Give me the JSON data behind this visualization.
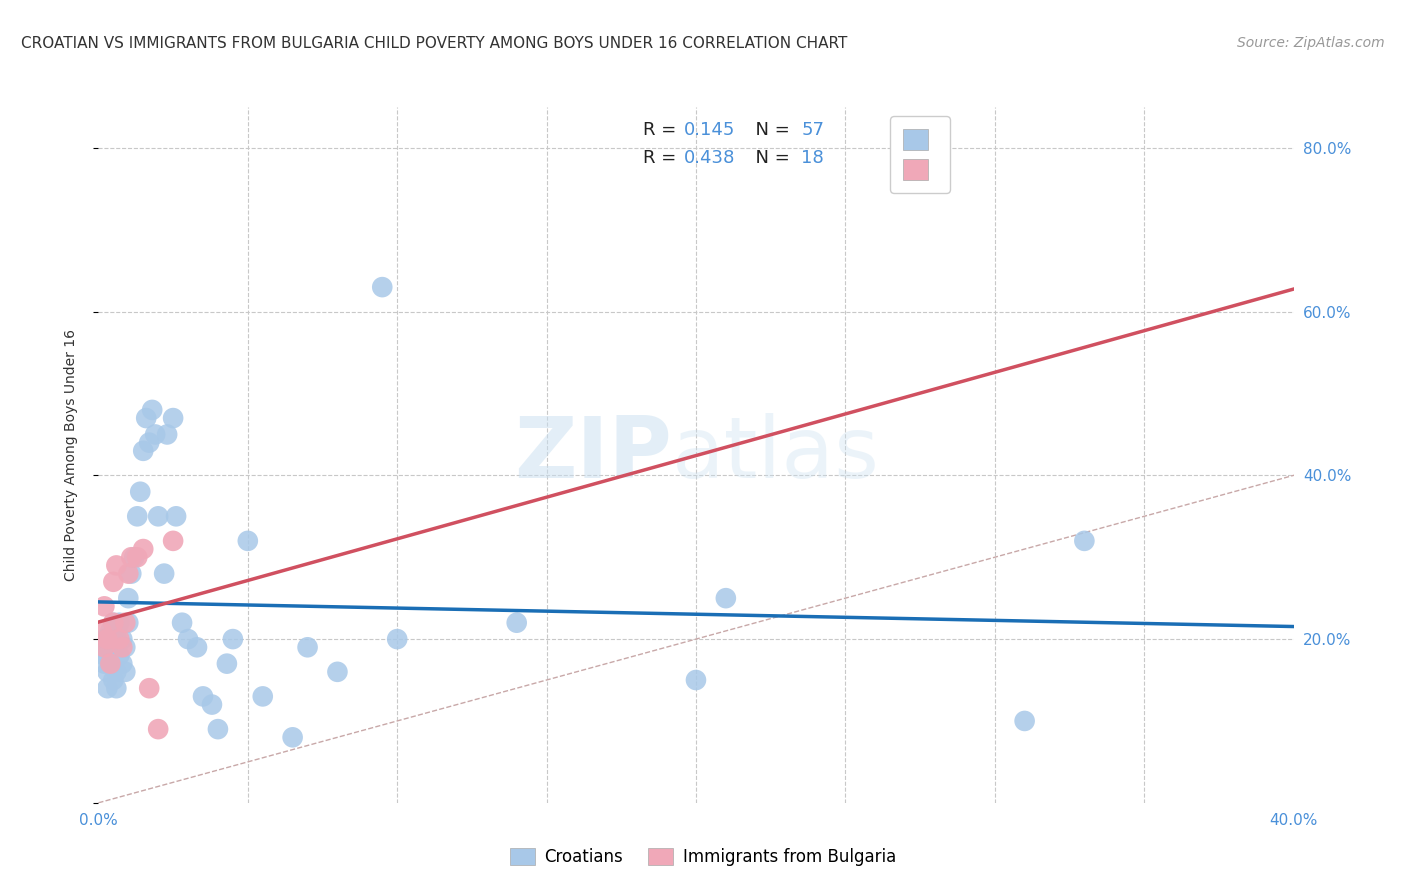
{
  "title": "CROATIAN VS IMMIGRANTS FROM BULGARIA CHILD POVERTY AMONG BOYS UNDER 16 CORRELATION CHART",
  "source": "Source: ZipAtlas.com",
  "ylabel": "Child Poverty Among Boys Under 16",
  "watermark_zip": "ZIP",
  "watermark_atlas": "atlas",
  "xlim": [
    0.0,
    0.4
  ],
  "ylim": [
    0.0,
    0.85
  ],
  "croatians_R": "0.145",
  "croatians_N": "57",
  "bulgarians_R": "0.438",
  "bulgarians_N": "18",
  "croatians_color": "#a8c8e8",
  "bulgarians_color": "#f0a8b8",
  "trendline_croatians_color": "#1a6eb5",
  "trendline_bulgarians_color": "#d05060",
  "diagonal_color": "#c8a8a8",
  "tick_color": "#4a90d9",
  "grid_color": "#c8c8c8",
  "background_color": "#ffffff",
  "title_fontsize": 11,
  "axis_label_fontsize": 10,
  "tick_fontsize": 11,
  "legend_fontsize": 13,
  "source_fontsize": 10,
  "croatians_x": [
    0.001,
    0.002,
    0.002,
    0.002,
    0.003,
    0.003,
    0.003,
    0.004,
    0.004,
    0.005,
    0.005,
    0.005,
    0.006,
    0.006,
    0.006,
    0.007,
    0.007,
    0.008,
    0.008,
    0.009,
    0.009,
    0.01,
    0.01,
    0.011,
    0.012,
    0.013,
    0.014,
    0.015,
    0.016,
    0.017,
    0.018,
    0.019,
    0.02,
    0.022,
    0.023,
    0.025,
    0.026,
    0.028,
    0.03,
    0.033,
    0.035,
    0.038,
    0.04,
    0.043,
    0.045,
    0.05,
    0.055,
    0.065,
    0.07,
    0.08,
    0.095,
    0.1,
    0.14,
    0.2,
    0.21,
    0.31,
    0.33
  ],
  "croatians_y": [
    0.19,
    0.18,
    0.17,
    0.2,
    0.16,
    0.19,
    0.14,
    0.17,
    0.21,
    0.15,
    0.19,
    0.22,
    0.16,
    0.2,
    0.14,
    0.18,
    0.22,
    0.17,
    0.2,
    0.19,
    0.16,
    0.22,
    0.25,
    0.28,
    0.3,
    0.35,
    0.38,
    0.43,
    0.47,
    0.44,
    0.48,
    0.45,
    0.35,
    0.28,
    0.45,
    0.47,
    0.35,
    0.22,
    0.2,
    0.19,
    0.13,
    0.12,
    0.09,
    0.17,
    0.2,
    0.32,
    0.13,
    0.08,
    0.19,
    0.16,
    0.63,
    0.2,
    0.22,
    0.15,
    0.25,
    0.1,
    0.32
  ],
  "bulgarians_x": [
    0.001,
    0.002,
    0.002,
    0.003,
    0.004,
    0.005,
    0.005,
    0.006,
    0.007,
    0.008,
    0.009,
    0.01,
    0.011,
    0.013,
    0.015,
    0.017,
    0.02,
    0.025
  ],
  "bulgarians_y": [
    0.21,
    0.24,
    0.19,
    0.2,
    0.17,
    0.22,
    0.27,
    0.29,
    0.2,
    0.19,
    0.22,
    0.28,
    0.3,
    0.3,
    0.31,
    0.14,
    0.09,
    0.32
  ]
}
